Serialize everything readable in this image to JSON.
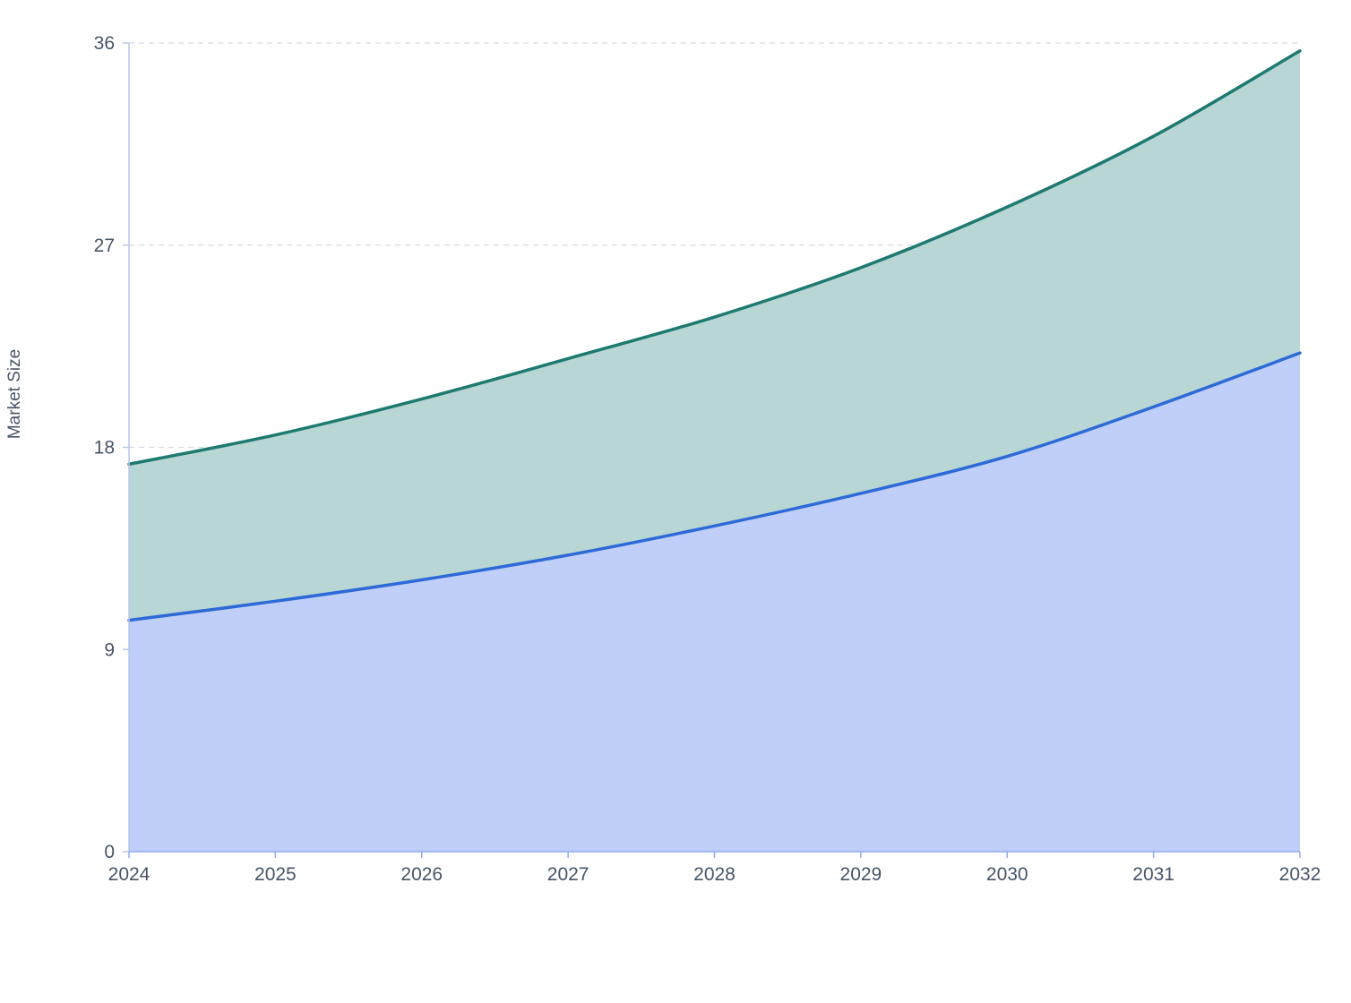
{
  "chart_data": {
    "type": "area",
    "stacked": true,
    "x": [
      2024,
      2025,
      2026,
      2027,
      2028,
      2029,
      2030,
      2031,
      2032
    ],
    "series": [
      {
        "values": [
          10.3,
          11.15,
          12.1,
          13.2,
          14.5,
          15.95,
          17.6,
          19.8,
          22.2
        ],
        "line_color": "#2d6ad8",
        "fill_color": "#bfcff9"
      },
      {
        "values": [
          6.95,
          7.4,
          8.05,
          8.75,
          9.3,
          10.05,
          11.1,
          12.05,
          13.45
        ],
        "line_color": "#1e7a70",
        "fill_color": "#b8d6d4"
      }
    ],
    "xlabel": "",
    "ylabel": "Market Size",
    "ylim": [
      0,
      36
    ],
    "yticks": [
      0,
      9,
      18,
      27,
      36
    ],
    "xticks": [
      "2024",
      "2025",
      "2026",
      "2027",
      "2028",
      "2029",
      "2030",
      "2031",
      "2032"
    ],
    "grid": "horizontal-dashed",
    "legend": "none"
  }
}
